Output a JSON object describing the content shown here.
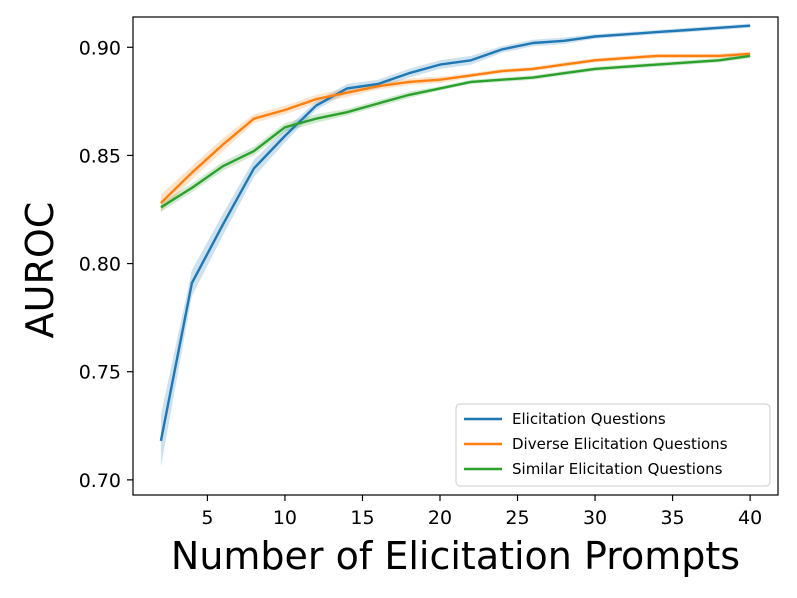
{
  "chart_data": {
    "type": "line",
    "title": "",
    "xlabel": "Number of Elicitation Prompts",
    "ylabel": "AUROC",
    "xlim": [
      0.2,
      41.8
    ],
    "ylim": [
      0.693,
      0.914
    ],
    "x_ticks": [
      5,
      10,
      15,
      20,
      25,
      30,
      35,
      40
    ],
    "y_ticks": [
      0.7,
      0.75,
      0.8,
      0.85,
      0.9
    ],
    "y_tick_labels": [
      "0.70",
      "0.75",
      "0.80",
      "0.85",
      "0.90"
    ],
    "grid": false,
    "legend_position": "lower-right",
    "x": [
      2,
      4,
      6,
      8,
      10,
      12,
      14,
      16,
      18,
      20,
      22,
      24,
      26,
      28,
      30,
      32,
      34,
      36,
      38,
      40
    ],
    "series": [
      {
        "name": "Elicitation Questions",
        "color": "#1f77b4",
        "values": [
          0.718,
          0.791,
          0.818,
          0.844,
          0.859,
          0.873,
          0.881,
          0.883,
          0.888,
          0.892,
          0.894,
          0.899,
          0.902,
          0.903,
          0.905,
          0.906,
          0.907,
          0.908,
          0.909,
          0.91
        ],
        "band": [
          0.012,
          0.006,
          0.005,
          0.004,
          0.003,
          0.002,
          0.002,
          0.002,
          0.002,
          0.002,
          0.002,
          0.0015,
          0.0015,
          0.0015,
          0.001,
          0.001,
          0.001,
          0.001,
          0.001,
          0.001
        ]
      },
      {
        "name": "Diverse Elicitation Questions",
        "color": "#ff7f0e",
        "values": [
          0.828,
          0.842,
          0.855,
          0.867,
          0.871,
          0.876,
          0.879,
          0.882,
          0.884,
          0.885,
          0.887,
          0.889,
          0.89,
          0.892,
          0.894,
          0.895,
          0.896,
          0.896,
          0.896,
          0.897
        ],
        "band": [
          0.004,
          0.003,
          0.003,
          0.002,
          0.002,
          0.002,
          0.002,
          0.0015,
          0.0015,
          0.0015,
          0.001,
          0.001,
          0.001,
          0.001,
          0.001,
          0.001,
          0.001,
          0.001,
          0.001,
          0.001
        ]
      },
      {
        "name": "Similar Elicitation Questions",
        "color": "#2ca02c",
        "values": [
          0.826,
          0.835,
          0.845,
          0.852,
          0.863,
          0.867,
          0.87,
          0.874,
          0.878,
          0.881,
          0.884,
          0.885,
          0.886,
          0.888,
          0.89,
          0.891,
          0.892,
          0.893,
          0.894,
          0.896
        ],
        "band": [
          0.002,
          0.002,
          0.002,
          0.002,
          0.002,
          0.002,
          0.0015,
          0.0015,
          0.0015,
          0.001,
          0.001,
          0.001,
          0.001,
          0.001,
          0.001,
          0.001,
          0.001,
          0.001,
          0.001,
          0.001
        ]
      }
    ]
  }
}
